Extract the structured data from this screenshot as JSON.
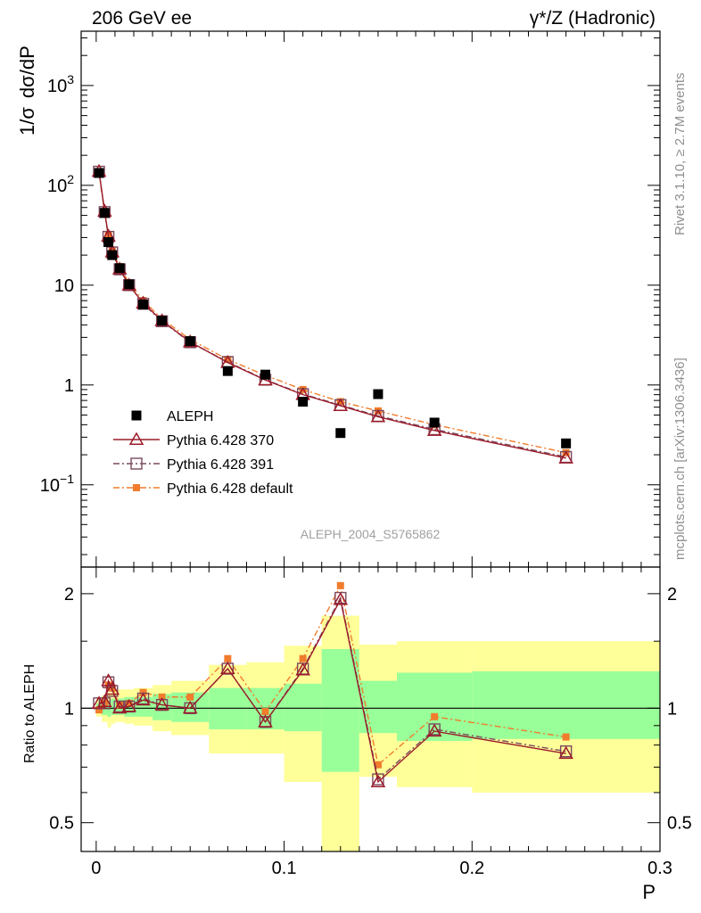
{
  "header": {
    "left_title": "206 GeV ee",
    "right_title": "γ*/Z (Hadronic)"
  },
  "side_texts": {
    "rivet": "Rivet 3.1.10, ≥ 2.7M events",
    "mcplots": "mcplots.cern.ch [arXiv:1306.3436]"
  },
  "analysis_label": "ALEPH_2004_S5765862",
  "colors": {
    "aleph": "#000000",
    "p370": "#9b1b2a",
    "p391": "#7a4a5e",
    "pdef": "#f07c2c",
    "band_inner": "#99ff99",
    "band_outer": "#ffff99"
  },
  "chart_data": [
    {
      "type": "scatter",
      "panel": "main",
      "ylabel": "1/σ dσ/dP",
      "ylabel_parts": [
        "1/σ",
        "dσ/dP"
      ],
      "yscale": "log",
      "xlim": [
        -0.008,
        0.3
      ],
      "ylim": [
        0.015,
        3500
      ],
      "yticks": [
        {
          "v": 0.1,
          "base": "10",
          "exp": "−1"
        },
        {
          "v": 1,
          "base": "1",
          "exp": ""
        },
        {
          "v": 10,
          "base": "10",
          "exp": ""
        },
        {
          "v": 100,
          "base": "10",
          "exp": "2"
        },
        {
          "v": 1000,
          "base": "10",
          "exp": "3"
        }
      ],
      "legend_position": "lower-left",
      "series": [
        {
          "name": "ALEPH",
          "key": "aleph",
          "marker": "filled-square",
          "x": [
            0.0015,
            0.0045,
            0.0065,
            0.0085,
            0.0125,
            0.0175,
            0.025,
            0.035,
            0.05,
            0.07,
            0.09,
            0.11,
            0.13,
            0.15,
            0.18,
            0.25
          ],
          "y": [
            133,
            53,
            27,
            20,
            14.8,
            10.2,
            6.4,
            4.4,
            2.75,
            1.38,
            1.27,
            0.68,
            0.33,
            0.81,
            0.42,
            0.26
          ]
        },
        {
          "name": "Pythia 6.428 370",
          "key": "p370",
          "marker": "open-triangle",
          "line": "solid",
          "x": [
            0.0015,
            0.0045,
            0.0065,
            0.0085,
            0.0125,
            0.0175,
            0.025,
            0.035,
            0.05,
            0.07,
            0.09,
            0.11,
            0.13,
            0.15,
            0.18,
            0.25
          ],
          "y": [
            138,
            55,
            31,
            21.5,
            14.5,
            10.0,
            6.6,
            4.4,
            2.7,
            1.68,
            1.12,
            0.8,
            0.62,
            0.48,
            0.35,
            0.185
          ]
        },
        {
          "name": "Pythia 6.428 391",
          "key": "p391",
          "marker": "open-square",
          "line": "dashdot",
          "x": [
            0.0015,
            0.0045,
            0.0065,
            0.0085,
            0.0125,
            0.0175,
            0.025,
            0.035,
            0.05,
            0.07,
            0.09,
            0.11,
            0.13,
            0.15,
            0.18,
            0.25
          ],
          "y": [
            137,
            54,
            30.5,
            21.3,
            14.4,
            10.0,
            6.5,
            4.35,
            2.68,
            1.7,
            1.13,
            0.81,
            0.63,
            0.49,
            0.36,
            0.19
          ]
        },
        {
          "name": "Pythia 6.428 default",
          "key": "pdef",
          "marker": "small-filled-square",
          "line": "dashdot",
          "x": [
            0.0015,
            0.0045,
            0.0065,
            0.0085,
            0.0125,
            0.0175,
            0.025,
            0.035,
            0.05,
            0.07,
            0.09,
            0.11,
            0.13,
            0.15,
            0.18,
            0.25
          ],
          "y": [
            132,
            53,
            31.5,
            22.5,
            15.3,
            10.5,
            7.0,
            4.6,
            2.85,
            1.8,
            1.25,
            0.9,
            0.68,
            0.55,
            0.4,
            0.21
          ]
        }
      ]
    },
    {
      "type": "line",
      "panel": "ratio",
      "ylabel": "Ratio to ALEPH",
      "xlabel": "P",
      "xlim": [
        -0.008,
        0.3
      ],
      "ylim": [
        0.42,
        2.35
      ],
      "yscale": "log",
      "xticks": [
        0,
        0.1,
        0.2,
        0.3
      ],
      "xtick_labels": [
        "0",
        "0.1",
        "0.2",
        "0.3"
      ],
      "yticks": [
        0.5,
        1,
        2
      ],
      "ytick_labels": [
        "0.5",
        "1",
        "2"
      ],
      "reference_line": 1,
      "uncertainty_bands": {
        "x_edges": [
          0,
          0.003,
          0.006,
          0.008,
          0.01,
          0.015,
          0.02,
          0.03,
          0.04,
          0.06,
          0.08,
          0.1,
          0.12,
          0.14,
          0.16,
          0.2,
          0.3
        ],
        "inner_low": [
          0.97,
          0.96,
          0.95,
          0.96,
          0.96,
          0.95,
          0.95,
          0.93,
          0.92,
          0.88,
          0.88,
          0.87,
          0.68,
          0.86,
          0.82,
          0.83
        ],
        "inner_high": [
          1.03,
          1.04,
          1.05,
          1.06,
          1.06,
          1.07,
          1.07,
          1.09,
          1.1,
          1.13,
          1.13,
          1.16,
          1.43,
          1.18,
          1.24,
          1.25
        ],
        "outer_low": [
          0.95,
          0.92,
          0.89,
          0.91,
          0.92,
          0.91,
          0.9,
          0.87,
          0.85,
          0.76,
          0.76,
          0.64,
          0.42,
          0.66,
          0.62,
          0.6
        ],
        "outer_high": [
          1.06,
          1.08,
          1.1,
          1.11,
          1.12,
          1.12,
          1.13,
          1.15,
          1.18,
          1.3,
          1.32,
          1.46,
          1.75,
          1.47,
          1.5,
          1.5
        ]
      },
      "series": [
        {
          "name": "Pythia 6.428 370",
          "key": "p370",
          "x": [
            0.0015,
            0.0045,
            0.0065,
            0.0085,
            0.0125,
            0.0175,
            0.025,
            0.035,
            0.05,
            0.07,
            0.09,
            0.11,
            0.13,
            0.15,
            0.18,
            0.25
          ],
          "y": [
            1.03,
            1.04,
            1.18,
            1.12,
            1.0,
            1.01,
            1.05,
            1.02,
            1.0,
            1.27,
            0.92,
            1.26,
            1.93,
            0.64,
            0.87,
            0.76
          ]
        },
        {
          "name": "Pythia 6.428 391",
          "key": "p391",
          "x": [
            0.0015,
            0.0045,
            0.0065,
            0.0085,
            0.0125,
            0.0175,
            0.025,
            0.035,
            0.05,
            0.07,
            0.09,
            0.11,
            0.13,
            0.15,
            0.18,
            0.25
          ],
          "y": [
            1.03,
            1.03,
            1.17,
            1.11,
            1.01,
            1.01,
            1.06,
            1.02,
            1.0,
            1.27,
            0.92,
            1.27,
            1.95,
            0.65,
            0.88,
            0.77
          ]
        },
        {
          "name": "Pythia 6.428 default",
          "key": "pdef",
          "x": [
            0.0015,
            0.0045,
            0.0065,
            0.0085,
            0.0125,
            0.0175,
            0.025,
            0.035,
            0.05,
            0.07,
            0.09,
            0.11,
            0.13,
            0.15,
            0.18,
            0.25
          ],
          "y": [
            0.99,
            1.03,
            1.15,
            1.13,
            1.02,
            1.03,
            1.1,
            1.07,
            1.07,
            1.35,
            0.98,
            1.35,
            2.1,
            0.71,
            0.95,
            0.84
          ]
        }
      ]
    }
  ]
}
